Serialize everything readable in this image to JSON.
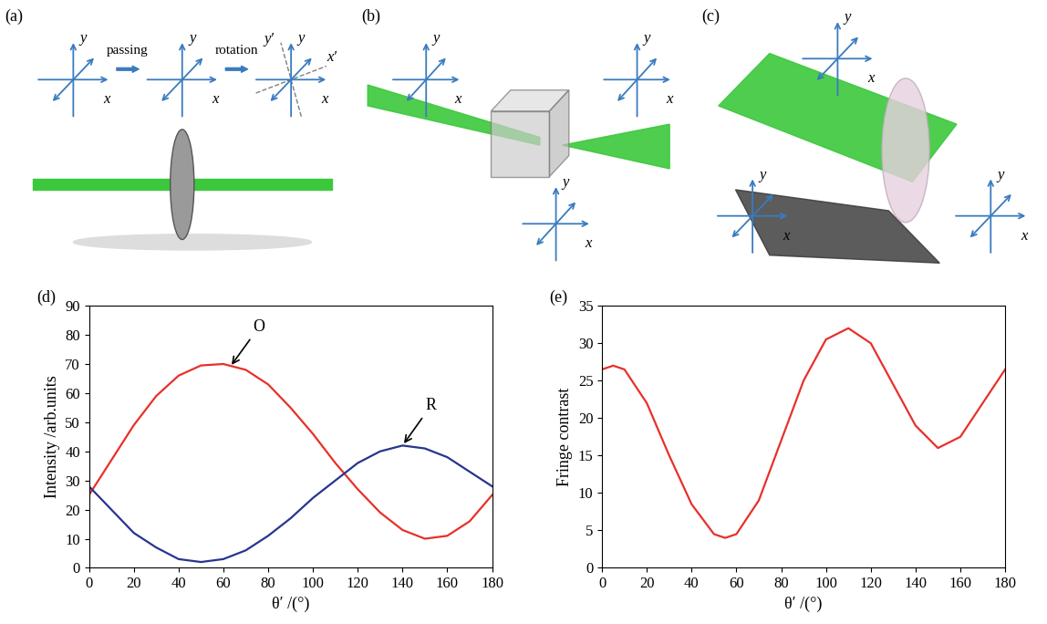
{
  "diagrams": [
    {
      "panel": "(a)",
      "steps": [
        "passing",
        "rotation"
      ],
      "frames": [
        [
          "x",
          "y"
        ],
        [
          "x",
          "y"
        ],
        [
          "x",
          "y",
          "x′",
          "y′"
        ]
      ]
    },
    {
      "panel": "(b)",
      "frames": [
        [
          "x",
          "y"
        ],
        [
          "x",
          "y"
        ],
        [
          "x",
          "y"
        ]
      ]
    },
    {
      "panel": "(c)",
      "frames": [
        [
          "x",
          "y"
        ],
        [
          "x",
          "y"
        ],
        [
          "x",
          "y"
        ]
      ]
    }
  ],
  "chart_data": [
    {
      "type": "line",
      "panel": "(d)",
      "x": [
        0,
        10,
        20,
        30,
        40,
        50,
        60,
        70,
        80,
        90,
        100,
        110,
        120,
        130,
        140,
        150,
        160,
        170,
        180
      ],
      "series": [
        {
          "color": "#e8302a",
          "values": [
            25,
            37,
            49,
            59,
            66,
            69.5,
            70,
            68,
            63,
            55,
            46,
            36,
            27,
            19,
            13,
            10,
            11,
            16,
            25
          ]
        },
        {
          "color": "#27358f",
          "values": [
            28,
            20,
            12,
            7,
            3,
            2,
            3,
            6,
            11,
            17,
            24,
            30,
            36,
            40,
            42,
            41,
            38,
            33,
            28
          ]
        }
      ],
      "annotations": [
        {
          "text": "O",
          "x": 63,
          "y": 69
        },
        {
          "text": "R",
          "x": 140,
          "y": 42
        }
      ],
      "xlabel": "θ′ /(°)",
      "ylabel": "Intensity /arb.units",
      "xlim": [
        0,
        180
      ],
      "ylim": [
        0,
        90
      ],
      "xticks": [
        0,
        20,
        40,
        60,
        80,
        100,
        120,
        140,
        160,
        180
      ],
      "yticks": [
        0,
        10,
        20,
        30,
        40,
        50,
        60,
        70,
        80,
        90
      ]
    },
    {
      "type": "line",
      "panel": "(e)",
      "x": [
        0,
        5,
        10,
        20,
        30,
        40,
        50,
        55,
        60,
        70,
        80,
        90,
        100,
        110,
        120,
        130,
        140,
        150,
        160,
        170,
        180
      ],
      "series": [
        {
          "color": "#e8302a",
          "values": [
            26.5,
            27,
            26.5,
            22,
            15,
            8.5,
            4.5,
            4,
            4.5,
            9,
            17,
            25,
            30.5,
            32,
            30,
            24.5,
            19,
            16,
            17.5,
            22,
            26.5
          ]
        }
      ],
      "xlabel": "θ′ /(°)",
      "ylabel": "Fringe contrast",
      "xlim": [
        0,
        180
      ],
      "ylim": [
        0,
        35
      ],
      "xticks": [
        0,
        20,
        40,
        60,
        80,
        100,
        120,
        140,
        160,
        180
      ],
      "yticks": [
        0,
        5,
        10,
        15,
        20,
        25,
        30,
        35
      ]
    }
  ]
}
